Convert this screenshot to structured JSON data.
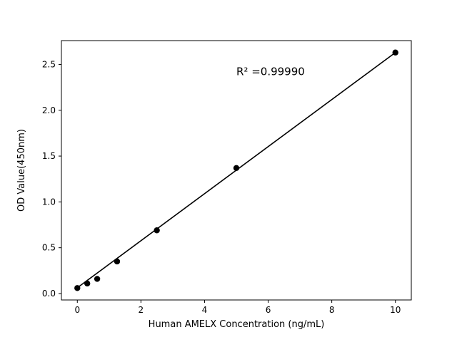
{
  "page": {
    "background_color": "#ffffff"
  },
  "chart_data": {
    "type": "scatter",
    "title": "",
    "xlabel": "Human AMELX Concentration (ng/mL)",
    "ylabel": "OD Value(450nm)",
    "x": [
      0,
      0.3125,
      0.625,
      1.25,
      2.5,
      5,
      10
    ],
    "y": [
      0.06,
      0.11,
      0.16,
      0.35,
      0.69,
      1.37,
      2.63
    ],
    "fit_line": {
      "x": [
        0,
        10
      ],
      "y": [
        0.063,
        2.63
      ]
    },
    "xlim": [
      -0.5,
      10.5
    ],
    "ylim": [
      -0.07,
      2.76
    ],
    "xticks": [
      0,
      2,
      4,
      6,
      8,
      10
    ],
    "xtick_labels": [
      "0",
      "2",
      "4",
      "6",
      "8",
      "10"
    ],
    "yticks": [
      0.0,
      0.5,
      1.0,
      1.5,
      2.0,
      2.5
    ],
    "ytick_labels": [
      "0.0",
      "0.5",
      "1.0",
      "1.5",
      "2.0",
      "2.5"
    ],
    "grid": false,
    "legend": null,
    "annotation": {
      "text": "R² =0.99990",
      "x": 5.0,
      "y": 2.42
    },
    "marker_color": "#000000",
    "line_color": "#000000",
    "frame_color": "#000000"
  }
}
